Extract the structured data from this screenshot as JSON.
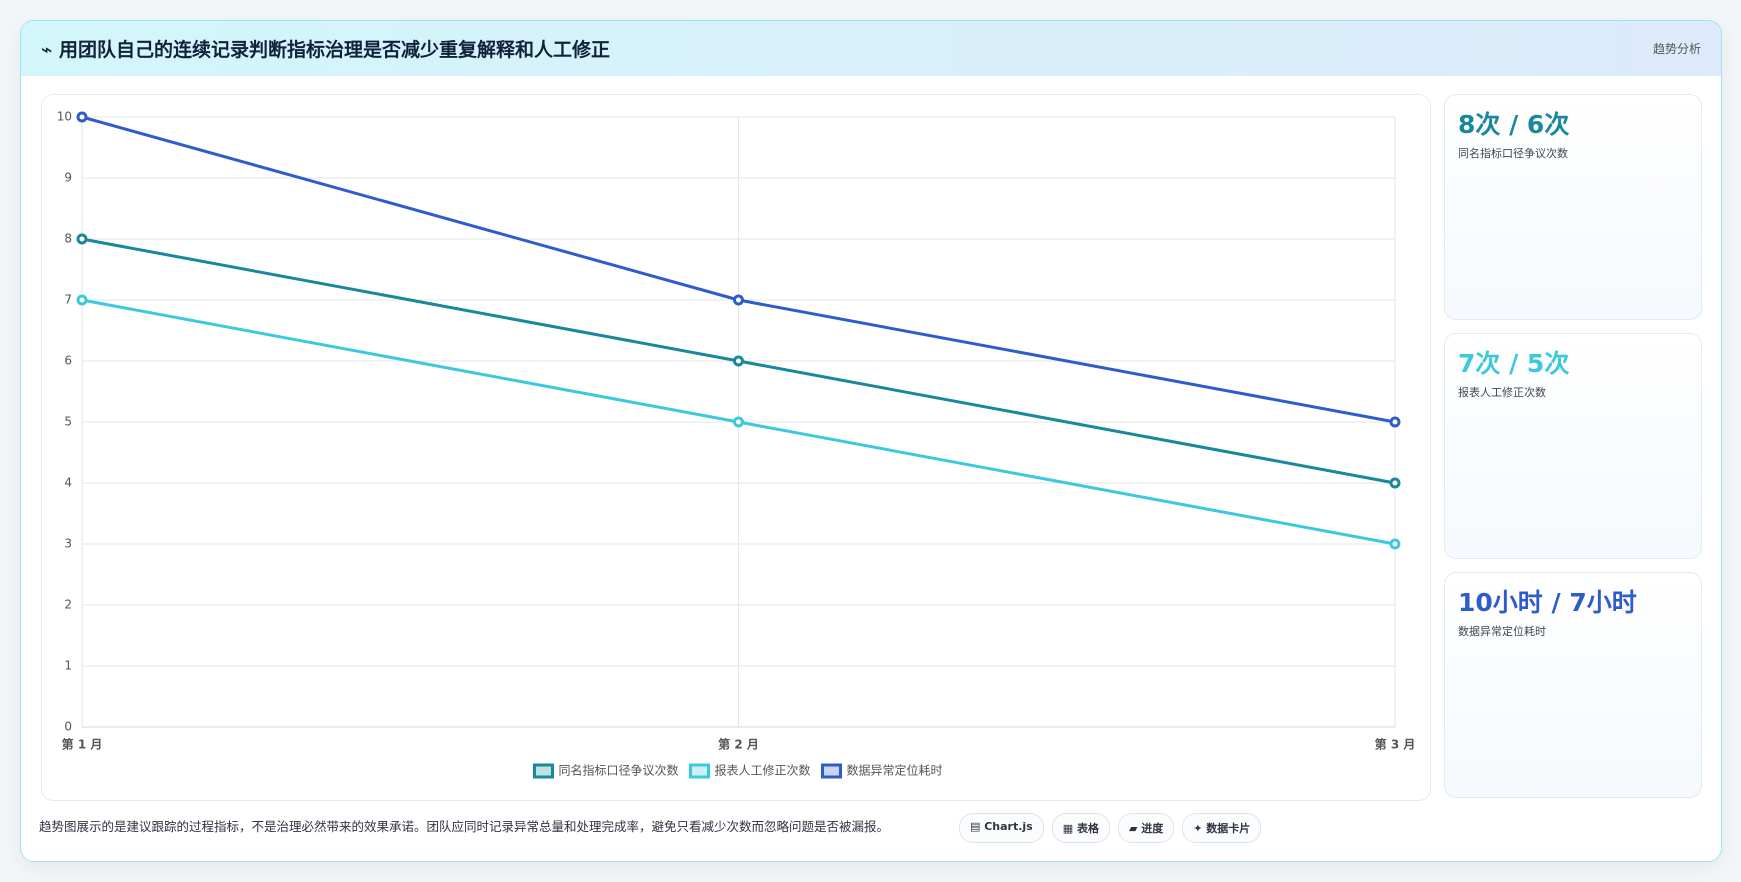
{
  "header": {
    "title": "⌁ 用团队自己的连续记录判断指标治理是否减少重复解释和人工修正",
    "tag": "趋势分析"
  },
  "chart_data": {
    "type": "line",
    "categories": [
      "第 1 月",
      "第 2 月",
      "第 3 月"
    ],
    "series": [
      {
        "name": "同名指标口径争议次数",
        "color": "#17899b",
        "values": [
          8,
          6,
          4
        ]
      },
      {
        "name": "报表人工修正次数",
        "color": "#3cc9dd",
        "values": [
          7,
          5,
          3
        ]
      },
      {
        "name": "数据异常定位耗时",
        "color": "#2f5ccc",
        "values": [
          10,
          7,
          5
        ]
      }
    ],
    "ylim": [
      0,
      10
    ],
    "yticks": [
      0,
      1,
      2,
      3,
      4,
      5,
      6,
      7,
      8,
      9,
      10
    ],
    "grid": true,
    "legend": "bottom"
  },
  "kpis": [
    {
      "value": "8次 / 6次",
      "label": "同名指标口径争议次数",
      "color": "#17899b"
    },
    {
      "value": "7次 / 5次",
      "label": "报表人工修正次数",
      "color": "#3cc9dd"
    },
    {
      "value": "10小时 / 7小时",
      "label": "数据异常定位耗时",
      "color": "#2f5ccc"
    }
  ],
  "footer": {
    "note": "趋势图展示的是建议跟踪的过程指标，不是治理必然带来的效果承诺。团队应同时记录异常总量和处理完成率，避免只看减少次数而忽略问题是否被漏报。",
    "chips": [
      "▤ Chart.js",
      "▦ 表格",
      "▰ 进度",
      "✦ 数据卡片"
    ]
  }
}
